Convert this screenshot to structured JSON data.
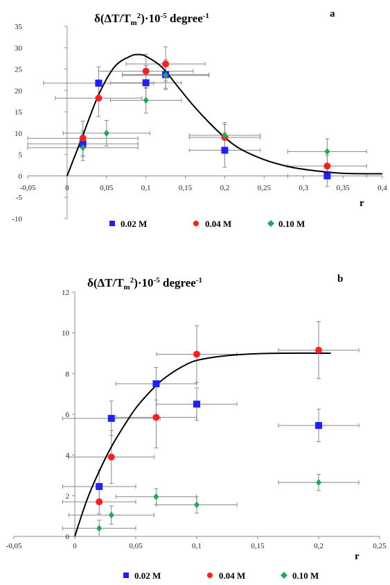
{
  "colors": {
    "c002": "#1f1fff",
    "c004": "#ff1f1f",
    "c010": "#1faa55",
    "fit": "#000000",
    "errorbar": "#888888"
  },
  "chart_data": [
    {
      "type": "scatter",
      "panel_label": "a",
      "title": "δ(ΔT/Tm²)·10⁻⁵ degree⁻¹",
      "title_parts": {
        "base": "δ(ΔT/T",
        "sub": "m",
        "sup1": "2",
        "mid": ")·10",
        "sup2": "-5",
        "unit": " degree",
        "sup3": "-1"
      },
      "xlabel": "r",
      "ylabel": "",
      "xlim": [
        -0.05,
        0.4
      ],
      "ylim": [
        -10,
        35
      ],
      "x_ticks": [
        -0.05,
        0,
        0.05,
        0.1,
        0.15,
        0.2,
        0.25,
        0.3,
        0.35,
        0.4
      ],
      "x_tick_labels": [
        "-0,05",
        "0",
        "0,05",
        "0,1",
        "0,15",
        "0,2",
        "0,25",
        "0,3",
        "0,35",
        "0,4"
      ],
      "y_ticks": [
        -10,
        -5,
        0,
        5,
        10,
        15,
        20,
        25,
        30,
        35
      ],
      "y_tick_labels": [
        "-10",
        "-5",
        "0",
        "5",
        "10",
        "15",
        "20",
        "25",
        "30",
        "35"
      ],
      "grid": false,
      "legend": {
        "placement": "bottom",
        "entries": [
          "0.02 M",
          "0.04 M",
          "0.10 M"
        ]
      },
      "series": [
        {
          "name": "0.02 M",
          "marker": "square",
          "color_key": "c002",
          "points": [
            {
              "x": 0.02,
              "y": 7.5,
              "xerr": 0.07,
              "yerr": 3
            },
            {
              "x": 0.04,
              "y": 21.7,
              "xerr": 0.07,
              "yerr": 3.8
            },
            {
              "x": 0.1,
              "y": 21.8,
              "xerr": 0.045,
              "yerr": 4
            },
            {
              "x": 0.125,
              "y": 23.7,
              "xerr": 0.055,
              "yerr": 3.5
            },
            {
              "x": 0.2,
              "y": 6,
              "xerr": 0.045,
              "yerr": 4
            },
            {
              "x": 0.33,
              "y": 0,
              "xerr": 0.05,
              "yerr": 2.5
            }
          ]
        },
        {
          "name": "0.04 M",
          "marker": "circle",
          "color_key": "c004",
          "points": [
            {
              "x": 0.02,
              "y": 8.8,
              "xerr": 0.07,
              "yerr": 4
            },
            {
              "x": 0.04,
              "y": 18.2,
              "xerr": 0.055,
              "yerr": 4.3
            },
            {
              "x": 0.1,
              "y": 24.5,
              "xerr": 0.06,
              "yerr": 4
            },
            {
              "x": 0.125,
              "y": 26.2,
              "xerr": 0.05,
              "yerr": 4
            },
            {
              "x": 0.2,
              "y": 9,
              "xerr": 0.045,
              "yerr": 3
            },
            {
              "x": 0.33,
              "y": 2.3,
              "xerr": 0.05,
              "yerr": 2.5
            }
          ]
        },
        {
          "name": "0.10 M",
          "marker": "diamond",
          "color_key": "c010",
          "points": [
            {
              "x": 0.02,
              "y": 6.6,
              "xerr": 0.07,
              "yerr": 3
            },
            {
              "x": 0.05,
              "y": 10,
              "xerr": 0.055,
              "yerr": 3
            },
            {
              "x": 0.1,
              "y": 17.7,
              "xerr": 0.045,
              "yerr": 3
            },
            {
              "x": 0.125,
              "y": 23.5,
              "xerr": 0.055,
              "yerr": 3
            },
            {
              "x": 0.2,
              "y": 9.5,
              "xerr": 0.045,
              "yerr": 3
            },
            {
              "x": 0.33,
              "y": 5.7,
              "xerr": 0.05,
              "yerr": 3
            }
          ]
        }
      ],
      "fit_curve": [
        [
          0,
          0
        ],
        [
          0.02,
          9.5
        ],
        [
          0.04,
          19
        ],
        [
          0.06,
          25.5
        ],
        [
          0.08,
          28
        ],
        [
          0.09,
          28.4
        ],
        [
          0.1,
          28
        ],
        [
          0.12,
          25.5
        ],
        [
          0.14,
          21
        ],
        [
          0.16,
          16.5
        ],
        [
          0.18,
          12.5
        ],
        [
          0.2,
          9
        ],
        [
          0.22,
          6.3
        ],
        [
          0.25,
          3.8
        ],
        [
          0.28,
          2.2
        ],
        [
          0.31,
          1.3
        ],
        [
          0.35,
          0.6
        ],
        [
          0.4,
          0.5
        ]
      ]
    },
    {
      "type": "scatter",
      "panel_label": "b",
      "title": "δ(ΔT/Tm²)·10⁻⁵ degree⁻¹",
      "title_parts": {
        "base": "δ(ΔT/T",
        "sub": "m",
        "sup1": "2",
        "mid": ")·10",
        "sup2": "-5",
        "unit": " degree",
        "sup3": "-1"
      },
      "xlabel": "r",
      "ylabel": "",
      "xlim": [
        -0.05,
        0.25
      ],
      "ylim": [
        0,
        12
      ],
      "x_ticks": [
        -0.05,
        0,
        0.05,
        0.1,
        0.15,
        0.2,
        0.25
      ],
      "x_tick_labels": [
        "-0,05",
        "0",
        "0,05",
        "0,1",
        "0,15",
        "0,2",
        "0,25"
      ],
      "y_ticks": [
        0,
        2,
        4,
        6,
        8,
        10,
        12
      ],
      "y_tick_labels": [
        "0",
        "2",
        "4",
        "6",
        "8",
        "10",
        "12"
      ],
      "grid": false,
      "legend": {
        "placement": "bottom",
        "entries": [
          "0.02 M",
          "0.04 M",
          "0.10 M"
        ]
      },
      "series": [
        {
          "name": "0.02 M",
          "marker": "square",
          "color_key": "c002",
          "points": [
            {
              "x": 0.02,
              "y": 2.45,
              "xerr": 0.03,
              "yerr": 0.8
            },
            {
              "x": 0.03,
              "y": 5.8,
              "xerr": 0.04,
              "yerr": 0.85
            },
            {
              "x": 0.0667,
              "y": 7.5,
              "xerr": 0.033,
              "yerr": 0.8
            },
            {
              "x": 0.1,
              "y": 6.5,
              "xerr": 0.033,
              "yerr": 0.8
            },
            {
              "x": 0.2,
              "y": 5.45,
              "xerr": 0.033,
              "yerr": 0.8
            }
          ]
        },
        {
          "name": "0.04 M",
          "marker": "circle",
          "color_key": "c004",
          "points": [
            {
              "x": 0.02,
              "y": 1.7,
              "xerr": 0.03,
              "yerr": 0.6
            },
            {
              "x": 0.03,
              "y": 3.9,
              "xerr": 0.035,
              "yerr": 1.3
            },
            {
              "x": 0.0667,
              "y": 5.85,
              "xerr": 0.033,
              "yerr": 1.5
            },
            {
              "x": 0.1,
              "y": 8.95,
              "xerr": 0.033,
              "yerr": 1.4
            },
            {
              "x": 0.2,
              "y": 9.15,
              "xerr": 0.033,
              "yerr": 1.4
            }
          ]
        },
        {
          "name": "0.10 M",
          "marker": "diamond",
          "color_key": "c010",
          "points": [
            {
              "x": 0.02,
              "y": 0.4,
              "xerr": 0.03,
              "yerr": 0.4
            },
            {
              "x": 0.03,
              "y": 1.05,
              "xerr": 0.035,
              "yerr": 0.45
            },
            {
              "x": 0.0667,
              "y": 1.95,
              "xerr": 0.033,
              "yerr": 0.4
            },
            {
              "x": 0.1,
              "y": 1.55,
              "xerr": 0.033,
              "yerr": 0.4
            },
            {
              "x": 0.2,
              "y": 2.65,
              "xerr": 0.033,
              "yerr": 0.4
            }
          ]
        }
      ],
      "fit_curve": [
        [
          0,
          0
        ],
        [
          0.01,
          1.8
        ],
        [
          0.02,
          3.2
        ],
        [
          0.03,
          4.4
        ],
        [
          0.04,
          5.4
        ],
        [
          0.05,
          6.3
        ],
        [
          0.06,
          7
        ],
        [
          0.07,
          7.6
        ],
        [
          0.08,
          8.05
        ],
        [
          0.09,
          8.4
        ],
        [
          0.1,
          8.65
        ],
        [
          0.12,
          8.85
        ],
        [
          0.14,
          8.95
        ],
        [
          0.17,
          9
        ],
        [
          0.21,
          9
        ]
      ]
    }
  ]
}
